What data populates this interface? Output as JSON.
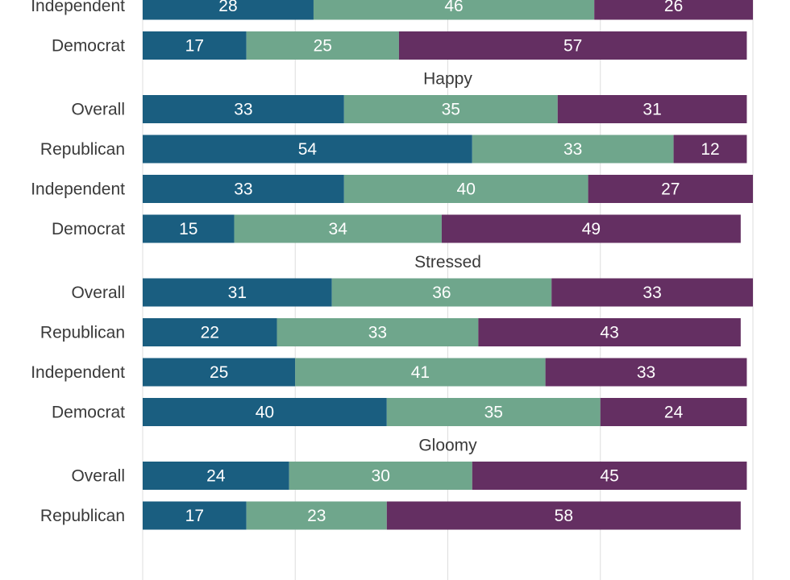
{
  "chart_data": {
    "type": "bar",
    "orientation": "horizontal",
    "stacked": true,
    "grid": true,
    "legend": "none",
    "xlim": [
      0,
      100
    ],
    "series_colors": [
      "#1a5e80",
      "#6fa68c",
      "#642f62"
    ],
    "groups": [
      {
        "title": "",
        "rows": [
          {
            "label": "Independent",
            "values": [
              28,
              46,
              26
            ]
          },
          {
            "label": "Democrat",
            "values": [
              17,
              25,
              57
            ]
          }
        ]
      },
      {
        "title": "Happy",
        "rows": [
          {
            "label": "Overall",
            "values": [
              33,
              35,
              31
            ]
          },
          {
            "label": "Republican",
            "values": [
              54,
              33,
              12
            ]
          },
          {
            "label": "Independent",
            "values": [
              33,
              40,
              27
            ]
          },
          {
            "label": "Democrat",
            "values": [
              15,
              34,
              49
            ]
          }
        ]
      },
      {
        "title": "Stressed",
        "rows": [
          {
            "label": "Overall",
            "values": [
              31,
              36,
              33
            ]
          },
          {
            "label": "Republican",
            "values": [
              22,
              33,
              43
            ]
          },
          {
            "label": "Independent",
            "values": [
              25,
              41,
              33
            ]
          },
          {
            "label": "Democrat",
            "values": [
              40,
              35,
              24
            ]
          }
        ]
      },
      {
        "title": "Gloomy",
        "rows": [
          {
            "label": "Overall",
            "values": [
              24,
              30,
              45
            ]
          },
          {
            "label": "Republican",
            "values": [
              17,
              23,
              58
            ]
          }
        ]
      }
    ]
  }
}
